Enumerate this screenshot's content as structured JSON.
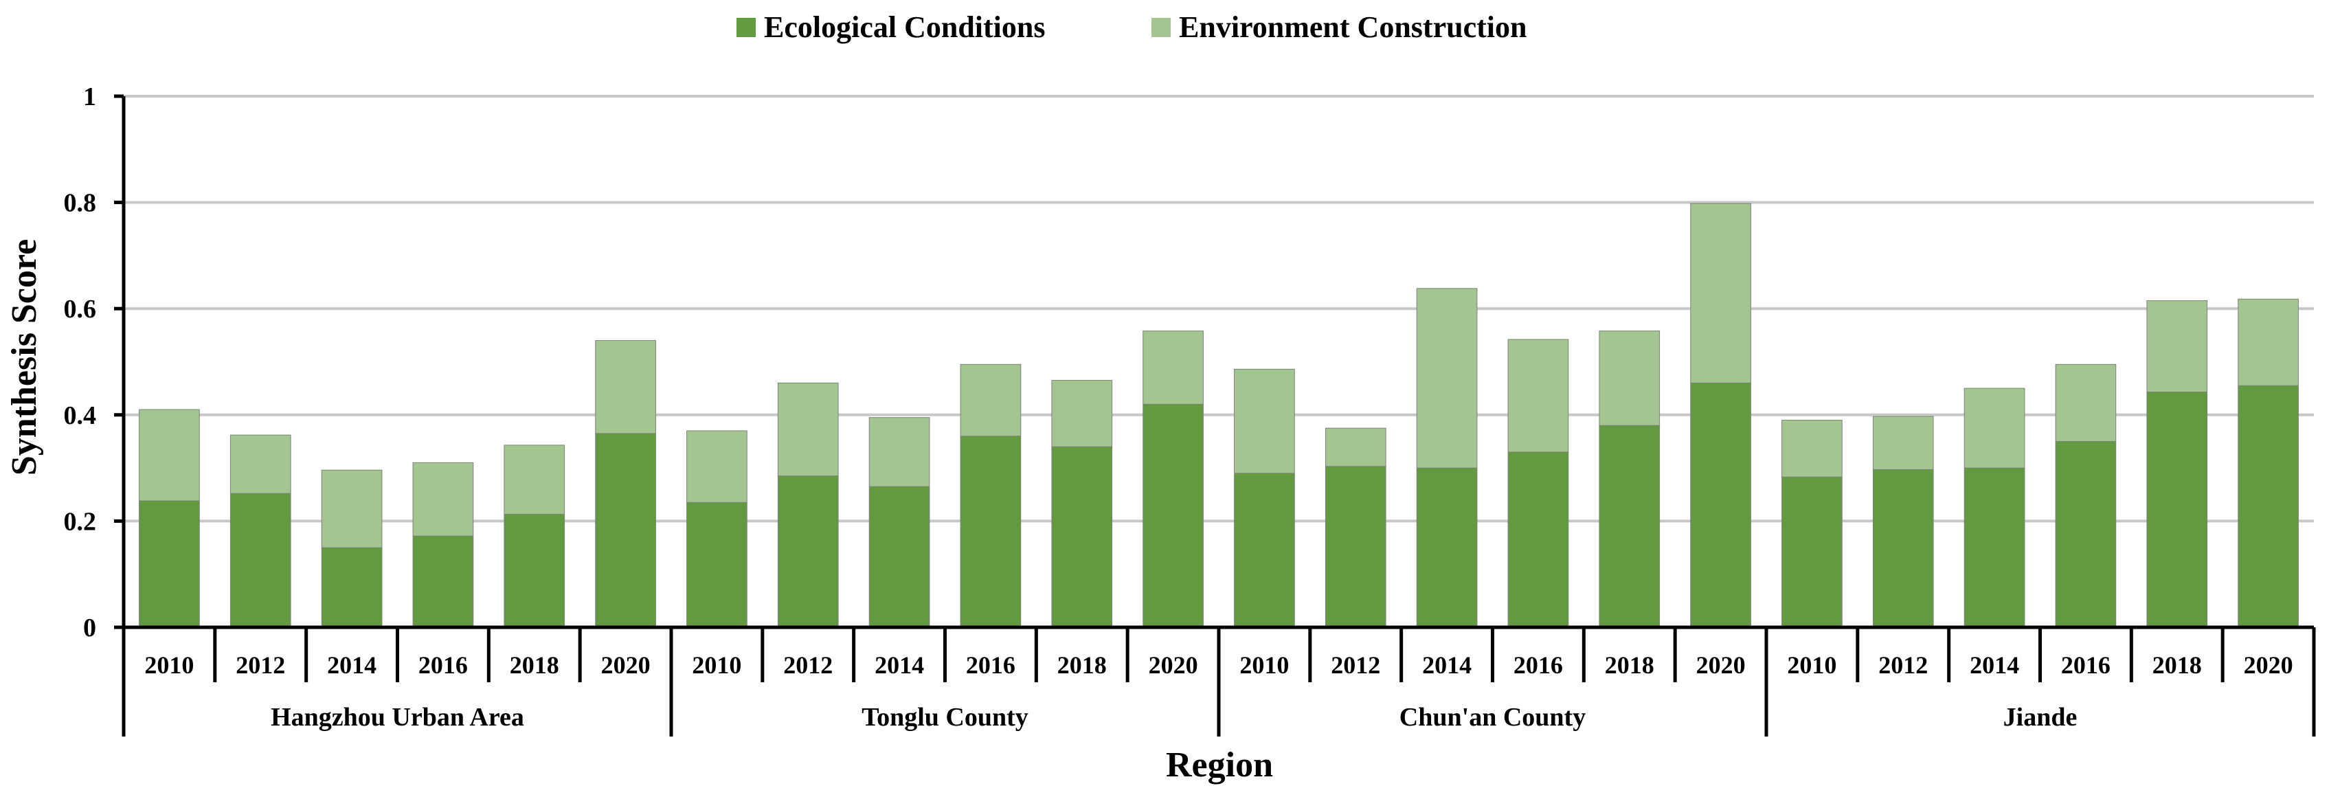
{
  "chart_data": {
    "type": "bar",
    "stacked": true,
    "title": "",
    "xlabel": "Region",
    "ylabel": "Synthesis Score",
    "ylim": [
      0,
      1
    ],
    "yticks": [
      "0",
      "0.2",
      "0.4",
      "0.6",
      "0.8",
      "1"
    ],
    "ytick_values": [
      0,
      0.2,
      0.4,
      0.6,
      0.8,
      1
    ],
    "grid": true,
    "legend_position": "top-center",
    "groups": [
      {
        "label": "Hangzhou Urban Area",
        "categories": [
          "2010",
          "2012",
          "2014",
          "2016",
          "2018",
          "2020"
        ]
      },
      {
        "label": "Tonglu County",
        "categories": [
          "2010",
          "2012",
          "2014",
          "2016",
          "2018",
          "2020"
        ]
      },
      {
        "label": "Chun'an County",
        "categories": [
          "2010",
          "2012",
          "2014",
          "2016",
          "2018",
          "2020"
        ]
      },
      {
        "label": "Jiande",
        "categories": [
          "2010",
          "2012",
          "2014",
          "2016",
          "2018",
          "2020"
        ]
      }
    ],
    "series": [
      {
        "name": "Ecological Conditions",
        "color": "#629A40",
        "values": [
          0.238,
          0.252,
          0.15,
          0.172,
          0.213,
          0.365,
          0.235,
          0.285,
          0.265,
          0.36,
          0.34,
          0.42,
          0.29,
          0.303,
          0.3,
          0.33,
          0.38,
          0.46,
          0.283,
          0.297,
          0.3,
          0.35,
          0.443,
          0.455
        ]
      },
      {
        "name": "Environment Construction",
        "color": "#A3C691",
        "values": [
          0.172,
          0.11,
          0.146,
          0.138,
          0.13,
          0.175,
          0.135,
          0.175,
          0.13,
          0.135,
          0.125,
          0.138,
          0.196,
          0.072,
          0.338,
          0.212,
          0.178,
          0.338,
          0.107,
          0.1,
          0.15,
          0.145,
          0.172,
          0.163
        ]
      }
    ]
  }
}
